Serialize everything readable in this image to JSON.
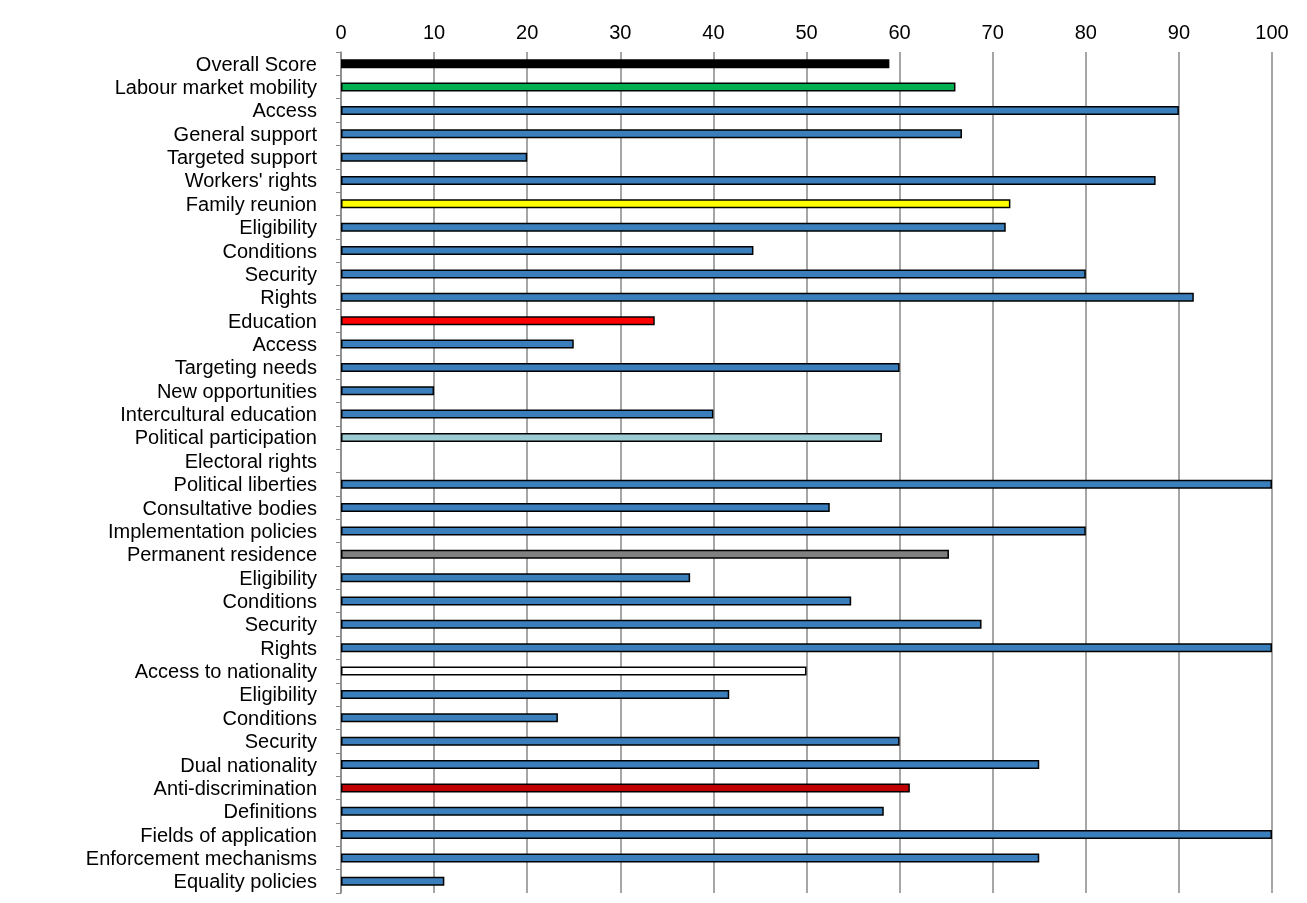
{
  "chart_data": {
    "type": "bar",
    "orientation": "horizontal",
    "categories": [
      "Overall Score",
      "Labour market mobility",
      "Access",
      "General support",
      "Targeted support",
      "Workers' rights",
      "Family reunion",
      "Eligibility",
      "Conditions",
      "Security",
      "Rights",
      "Education",
      "Access",
      "Targeting needs",
      "New opportunities",
      "Intercultural education",
      "Political participation",
      "Electoral rights",
      "Political liberties",
      "Consultative bodies",
      "Implementation policies",
      "Permanent residence",
      "Eligibility",
      "Conditions",
      "Security",
      "Rights",
      "Access to nationality",
      "Eligibility",
      "Conditions",
      "Security",
      "Dual nationality",
      "Anti-discrimination",
      "Definitions",
      "Fields of application",
      "Enforcement mechanisms",
      "Equality policies"
    ],
    "values": [
      58.9,
      66,
      90,
      66.7,
      20,
      87.5,
      71.9,
      71.4,
      44.3,
      80,
      91.6,
      33.7,
      25,
      60,
      10,
      40,
      58.1,
      0,
      100,
      52.5,
      80,
      65.3,
      37.5,
      54.8,
      68.8,
      100,
      50,
      41.7,
      23.3,
      60,
      75,
      61.1,
      58.3,
      100,
      75,
      11.1
    ],
    "colors": [
      "#000000",
      "#00b050",
      "#3a7fbb",
      "#3a7fbb",
      "#3a7fbb",
      "#3a7fbb",
      "#ffff00",
      "#3a7fbb",
      "#3a7fbb",
      "#3a7fbb",
      "#3a7fbb",
      "#ff0000",
      "#3a7fbb",
      "#3a7fbb",
      "#3a7fbb",
      "#3a7fbb",
      "#9dcbd3",
      "#3a7fbb",
      "#3a7fbb",
      "#3a7fbb",
      "#3a7fbb",
      "#808080",
      "#3a7fbb",
      "#3a7fbb",
      "#3a7fbb",
      "#3a7fbb",
      "#ffffff",
      "#3a7fbb",
      "#3a7fbb",
      "#3a7fbb",
      "#3a7fbb",
      "#c00000",
      "#3a7fbb",
      "#3a7fbb",
      "#3a7fbb",
      "#3a7fbb"
    ],
    "xlim": [
      0,
      100
    ],
    "xticks": [
      0,
      10,
      20,
      30,
      40,
      50,
      60,
      70,
      80,
      90,
      100
    ],
    "grid": "x"
  }
}
